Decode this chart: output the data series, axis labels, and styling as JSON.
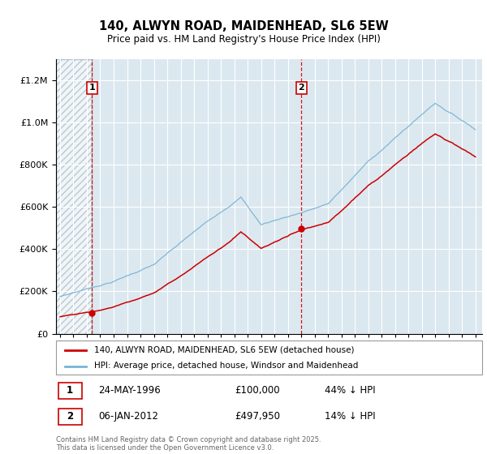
{
  "title": "140, ALWYN ROAD, MAIDENHEAD, SL6 5EW",
  "subtitle": "Price paid vs. HM Land Registry's House Price Index (HPI)",
  "sale1_date": "24-MAY-1996",
  "sale1_price": 100000,
  "sale1_label": "£100,000",
  "sale1_pct": "44% ↓ HPI",
  "sale1_year": 1996.39,
  "sale2_date": "06-JAN-2012",
  "sale2_price": 497950,
  "sale2_label": "£497,950",
  "sale2_pct": "14% ↓ HPI",
  "sale2_year": 2012.02,
  "legend_line1": "140, ALWYN ROAD, MAIDENHEAD, SL6 5EW (detached house)",
  "legend_line2": "HPI: Average price, detached house, Windsor and Maidenhead",
  "footer": "Contains HM Land Registry data © Crown copyright and database right 2025.\nThis data is licensed under the Open Government Licence v3.0.",
  "hpi_color": "#7ab4d4",
  "price_color": "#cc0000",
  "bg_color": "#dce8f0",
  "ylim_max": 1300000,
  "ylim_min": 0,
  "xlim_min": 1993.7,
  "xlim_max": 2025.5
}
